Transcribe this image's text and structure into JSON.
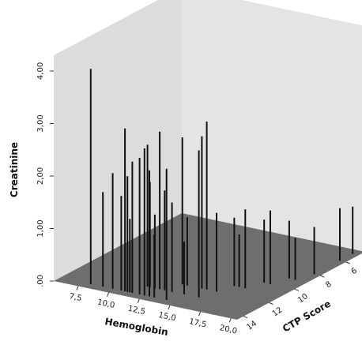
{
  "chart_data": {
    "type": "3d-spike",
    "xlabel": "Hemoglobin",
    "ylabel": "CTP Score",
    "zlabel": "Creatinine",
    "x_ticks": [
      "7,5",
      "10,0",
      "12,5",
      "15,0",
      "17,5",
      "20,0"
    ],
    "y_ticks": [
      "14",
      "12",
      "10",
      "8",
      "6"
    ],
    "z_ticks": [
      ".00",
      "1,00",
      "2,00",
      "3,00",
      "4,00"
    ],
    "x_range": [
      5.5,
      20.5
    ],
    "y_range": [
      4.5,
      14.5
    ],
    "z_range": [
      0,
      4.3
    ],
    "colors": {
      "back_wall": "#dcdcdc",
      "side_wall": "#e4e4e4",
      "floor": "#6e6e6e",
      "spike": "#111111"
    },
    "points": [
      {
        "x": 8.0,
        "y": 14.0,
        "z": 4.1
      },
      {
        "x": 9.0,
        "y": 14.0,
        "z": 1.8
      },
      {
        "x": 9.8,
        "y": 14.0,
        "z": 2.2
      },
      {
        "x": 10.5,
        "y": 14.0,
        "z": 1.8
      },
      {
        "x": 10.8,
        "y": 14.0,
        "z": 3.1
      },
      {
        "x": 11.0,
        "y": 14.0,
        "z": 2.2
      },
      {
        "x": 11.2,
        "y": 14.0,
        "z": 1.4
      },
      {
        "x": 11.4,
        "y": 14.0,
        "z": 2.5
      },
      {
        "x": 11.6,
        "y": 13.0,
        "z": 2.7
      },
      {
        "x": 11.8,
        "y": 13.0,
        "z": 2.0
      },
      {
        "x": 12.0,
        "y": 14.0,
        "z": 2.6
      },
      {
        "x": 12.2,
        "y": 13.0,
        "z": 1.4
      },
      {
        "x": 12.4,
        "y": 14.0,
        "z": 2.8
      },
      {
        "x": 12.6,
        "y": 13.0,
        "z": 3.0
      },
      {
        "x": 12.8,
        "y": 14.0,
        "z": 2.4
      },
      {
        "x": 13.0,
        "y": 13.0,
        "z": 1.9
      },
      {
        "x": 13.2,
        "y": 14.0,
        "z": 1.2
      },
      {
        "x": 13.4,
        "y": 12.0,
        "z": 2.8
      },
      {
        "x": 13.6,
        "y": 13.0,
        "z": 1.7
      },
      {
        "x": 13.8,
        "y": 12.0,
        "z": 1.3
      },
      {
        "x": 14.2,
        "y": 14.0,
        "z": 2.5
      },
      {
        "x": 14.6,
        "y": 13.0,
        "z": 1.0
      },
      {
        "x": 15.0,
        "y": 12.0,
        "z": 2.9
      },
      {
        "x": 15.4,
        "y": 12.0,
        "z": 3.2
      },
      {
        "x": 15.8,
        "y": 13.0,
        "z": 2.8
      },
      {
        "x": 16.2,
        "y": 12.0,
        "z": 1.5
      },
      {
        "x": 16.6,
        "y": 11.0,
        "z": 1.3
      },
      {
        "x": 17.0,
        "y": 11.0,
        "z": 1.0
      },
      {
        "x": 17.5,
        "y": 11.0,
        "z": 1.5
      },
      {
        "x": 18.0,
        "y": 10.0,
        "z": 1.2
      },
      {
        "x": 18.5,
        "y": 10.0,
        "z": 1.4
      },
      {
        "x": 19.0,
        "y": 9.0,
        "z": 1.1
      },
      {
        "x": 19.5,
        "y": 9.0,
        "z": 0.8
      },
      {
        "x": 20.0,
        "y": 8.0,
        "z": 0.9
      },
      {
        "x": 20.0,
        "y": 6.0,
        "z": 1.0
      },
      {
        "x": 20.0,
        "y": 5.0,
        "z": 0.9
      }
    ]
  }
}
